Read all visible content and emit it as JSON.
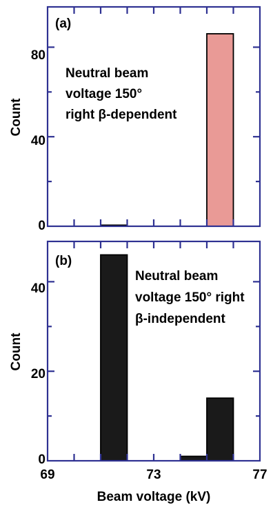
{
  "colors": {
    "frame": "#2e3192",
    "bar_a": "#e99a96",
    "bar_b": "#1a1a1a",
    "bar_edge": "#000000"
  },
  "xaxis": {
    "label": "Beam voltage  (kV)",
    "ticks": [
      69,
      73,
      77
    ],
    "tick_labels": [
      "69",
      "73",
      "77"
    ],
    "range": [
      69,
      77
    ]
  },
  "chart_data": [
    {
      "type": "bar",
      "panel_label": "(a)",
      "annotation": [
        "Neutral beam",
        "voltage 150°",
        "right β-dependent"
      ],
      "ylabel": "Count",
      "ylim": [
        0,
        98
      ],
      "yticks": [
        0,
        40,
        80
      ],
      "ytick_labels": [
        "0",
        "40",
        "80"
      ],
      "bin_width": 1,
      "bins": [
        {
          "x_start": 71,
          "x_end": 72,
          "value": 0.5
        },
        {
          "x_start": 75,
          "x_end": 76,
          "value": 86
        }
      ]
    },
    {
      "type": "bar",
      "panel_label": "(b)",
      "annotation": [
        "Neutral beam",
        "voltage 150° right",
        "β-independent"
      ],
      "ylabel": "Count",
      "ylim": [
        0,
        49
      ],
      "yticks": [
        0,
        20,
        40
      ],
      "ytick_labels": [
        "0",
        "20",
        "40"
      ],
      "bin_width": 1,
      "bins": [
        {
          "x_start": 71,
          "x_end": 72,
          "value": 46
        },
        {
          "x_start": 74,
          "x_end": 75,
          "value": 1
        },
        {
          "x_start": 75,
          "x_end": 76,
          "value": 14
        }
      ]
    }
  ]
}
